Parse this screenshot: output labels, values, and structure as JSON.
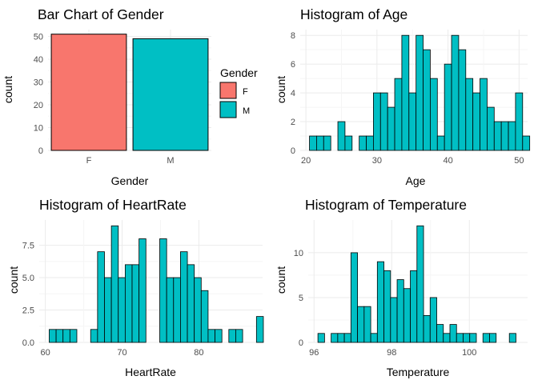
{
  "chart_data": [
    {
      "type": "bar",
      "title": "Bar Chart of Gender",
      "xlabel": "Gender",
      "ylabel": "count",
      "categories": [
        "F",
        "M"
      ],
      "values": [
        51,
        49
      ],
      "ylim": [
        0,
        53
      ],
      "yticks": [
        0,
        10,
        20,
        30,
        40,
        50
      ],
      "grid": true,
      "legend": {
        "title": "Gender",
        "placement": "right",
        "entries": [
          {
            "label": "F",
            "color": "#F8766D"
          },
          {
            "label": "M",
            "color": "#00BFC4"
          }
        ]
      }
    },
    {
      "type": "bar",
      "subtype": "histogram",
      "title": "Histogram of Age",
      "xlabel": "Age",
      "ylabel": "count",
      "bin_start": 20.5,
      "bin_width": 1.0,
      "values": [
        1,
        1,
        1,
        0,
        2,
        1,
        0,
        1,
        1,
        4,
        4,
        3,
        5,
        8,
        4,
        8,
        7,
        5,
        1,
        6,
        8,
        7,
        5,
        4,
        5,
        3,
        2,
        2,
        2,
        4,
        1
      ],
      "xlim": [
        19.2,
        51.2
      ],
      "ylim": [
        0,
        8.4
      ],
      "xticks": [
        20,
        30,
        40,
        50
      ],
      "yticks": [
        0,
        2,
        4,
        6,
        8
      ],
      "bar_color": "#00BFC4",
      "grid": true
    },
    {
      "type": "bar",
      "subtype": "histogram",
      "title": "Histogram of HeartRate",
      "xlabel": "HeartRate",
      "ylabel": "count",
      "bin_start": 60.5,
      "bin_width": 0.9,
      "values": [
        1,
        1,
        1,
        1,
        0,
        0,
        1,
        7,
        5,
        9,
        5,
        6,
        6,
        8,
        0,
        0,
        8,
        5,
        5,
        7,
        6,
        5,
        4,
        1,
        1,
        0,
        1,
        1,
        0,
        0,
        2
      ],
      "xlim": [
        59.2,
        88.3
      ],
      "ylim": [
        0,
        9.45
      ],
      "xticks": [
        60,
        70,
        80
      ],
      "yticks": [
        0.0,
        2.5,
        5.0,
        7.5
      ],
      "bar_color": "#00BFC4",
      "grid": true
    },
    {
      "type": "bar",
      "subtype": "histogram",
      "title": "Histogram of Temperature",
      "xlabel": "Temperature",
      "ylabel": "count",
      "bin_start": 96.1,
      "bin_width": 0.17,
      "values": [
        1,
        0,
        1,
        1,
        1,
        10,
        4,
        4,
        1,
        9,
        8,
        5,
        7,
        6,
        8,
        13,
        3,
        5,
        2,
        1,
        2,
        1,
        1,
        1,
        0,
        1,
        1,
        0,
        0,
        1
      ],
      "xlim": [
        95.85,
        101.5
      ],
      "ylim": [
        0,
        13.65
      ],
      "xticks": [
        96,
        98,
        100
      ],
      "yticks": [
        0,
        5,
        10
      ],
      "bar_color": "#00BFC4",
      "grid": true
    }
  ]
}
